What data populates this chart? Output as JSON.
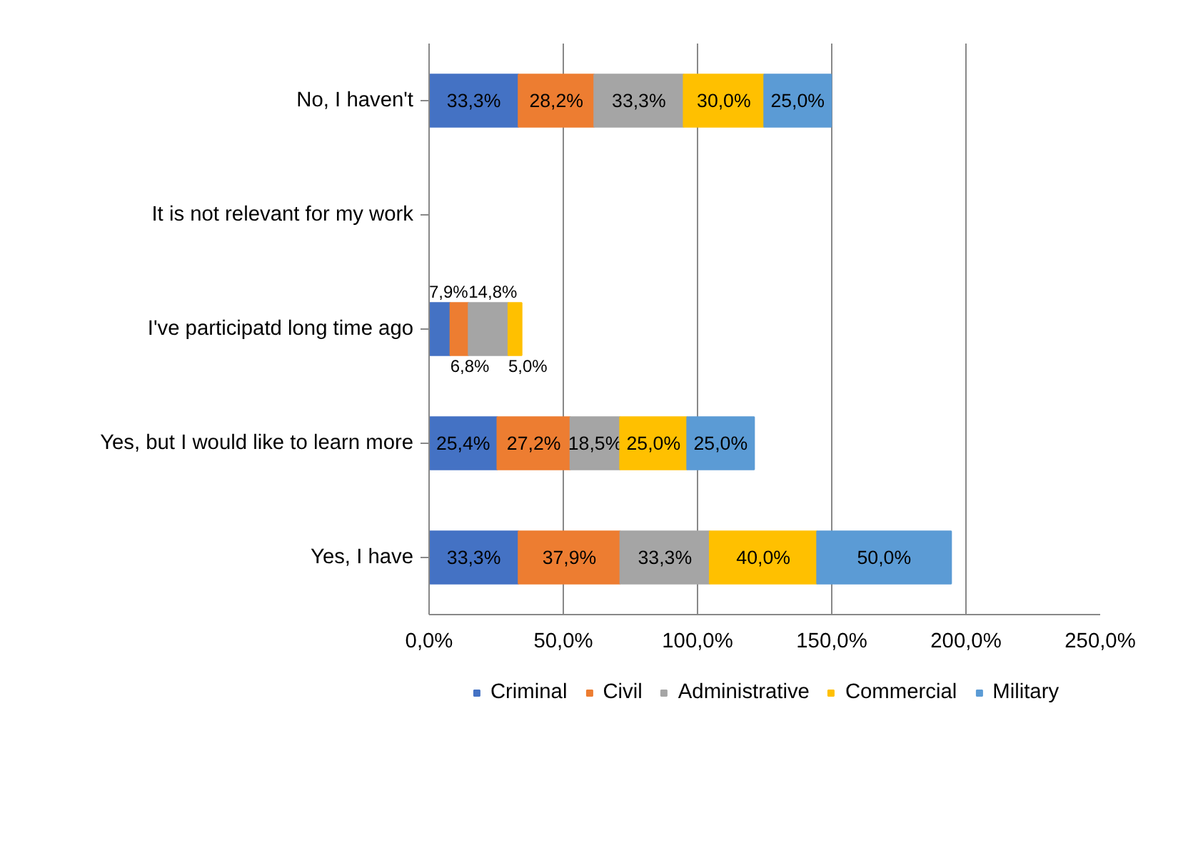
{
  "chart_data": {
    "type": "bar",
    "orientation": "horizontal",
    "stacked": true,
    "categories": [
      "No, I haven't",
      "It is not relevant for my work",
      "I've participatd long time ago",
      "Yes, but I would like to learn more",
      "Yes, I have"
    ],
    "series": [
      {
        "name": "Criminal",
        "color": "#4472c4",
        "values": [
          33.3,
          null,
          7.9,
          25.4,
          33.3
        ],
        "value_labels": [
          "33,3%",
          null,
          "7,9%",
          "25,4%",
          "33,3%"
        ]
      },
      {
        "name": "Civil",
        "color": "#ed7d31",
        "values": [
          28.2,
          null,
          6.8,
          27.2,
          37.9
        ],
        "value_labels": [
          "28,2%",
          null,
          "6,8%",
          "27,2%",
          "37,9%"
        ]
      },
      {
        "name": "Administrative",
        "color": "#a5a5a5",
        "values": [
          33.3,
          null,
          14.8,
          18.5,
          33.3
        ],
        "value_labels": [
          "33,3%",
          null,
          "14,8%",
          "18,5%",
          "33,3%"
        ]
      },
      {
        "name": "Commercial",
        "color": "#ffc000",
        "values": [
          30.0,
          null,
          5.0,
          25.0,
          40.0
        ],
        "value_labels": [
          "30,0%",
          null,
          "5,0%",
          "25,0%",
          "40,0%"
        ]
      },
      {
        "name": "Military",
        "color": "#5b9bd5",
        "values": [
          25.0,
          null,
          null,
          25.0,
          50.0
        ],
        "value_labels": [
          "25,0%",
          null,
          null,
          "25,0%",
          "50,0%"
        ]
      }
    ],
    "xlim": [
      0,
      250
    ],
    "xticks": [
      {
        "value": 0,
        "label": "0,0%"
      },
      {
        "value": 50,
        "label": "50,0%"
      },
      {
        "value": 100,
        "label": "100,0%"
      },
      {
        "value": 150,
        "label": "150,0%"
      },
      {
        "value": 200,
        "label": "200,0%"
      },
      {
        "value": 250,
        "label": "250,0%"
      }
    ],
    "grid": "x",
    "legend": "bottom"
  }
}
